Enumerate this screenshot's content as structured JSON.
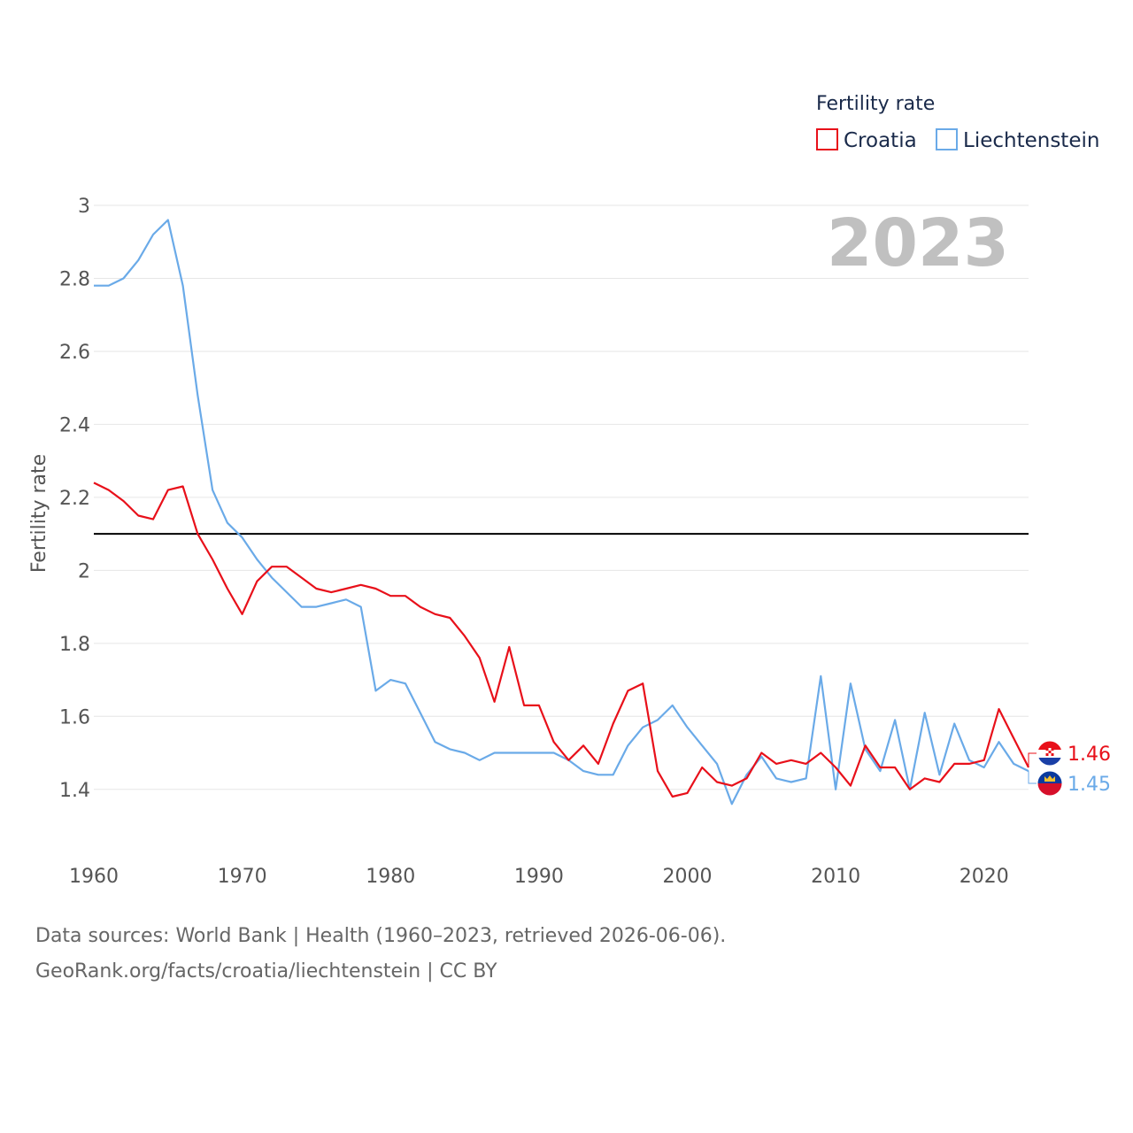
{
  "chart_data": {
    "type": "line",
    "legend_title": "Fertility rate",
    "ylabel": "Fertility rate",
    "xlabel": "",
    "year_watermark": "2023",
    "ylim": [
      1.3,
      3.0
    ],
    "xlim": [
      1960,
      2023
    ],
    "y_ticks": [
      "1.4",
      "1.6",
      "1.8",
      "2",
      "2.2",
      "2.4",
      "2.6",
      "2.8",
      "3"
    ],
    "x_ticks": [
      "1960",
      "1970",
      "1980",
      "1990",
      "2000",
      "2010",
      "2020"
    ],
    "reference_line": 2.1,
    "x": [
      1960,
      1961,
      1962,
      1963,
      1964,
      1965,
      1966,
      1967,
      1968,
      1969,
      1970,
      1971,
      1972,
      1973,
      1974,
      1975,
      1976,
      1977,
      1978,
      1979,
      1980,
      1981,
      1982,
      1983,
      1984,
      1985,
      1986,
      1987,
      1988,
      1989,
      1990,
      1991,
      1992,
      1993,
      1994,
      1995,
      1996,
      1997,
      1998,
      1999,
      2000,
      2001,
      2002,
      2003,
      2004,
      2005,
      2006,
      2007,
      2008,
      2009,
      2010,
      2011,
      2012,
      2013,
      2014,
      2015,
      2016,
      2017,
      2018,
      2019,
      2020,
      2021,
      2022,
      2023
    ],
    "series": [
      {
        "name": "Croatia",
        "color": "#e8101a",
        "end_label": "1.46",
        "flag": "croatia-flag",
        "values": [
          2.24,
          2.22,
          2.19,
          2.15,
          2.14,
          2.22,
          2.23,
          2.1,
          2.03,
          1.95,
          1.88,
          1.97,
          2.01,
          2.01,
          1.98,
          1.95,
          1.94,
          1.95,
          1.96,
          1.95,
          1.93,
          1.93,
          1.9,
          1.88,
          1.87,
          1.82,
          1.76,
          1.64,
          1.79,
          1.63,
          1.63,
          1.53,
          1.48,
          1.52,
          1.47,
          1.58,
          1.67,
          1.69,
          1.45,
          1.38,
          1.39,
          1.46,
          1.42,
          1.41,
          1.43,
          1.5,
          1.47,
          1.48,
          1.47,
          1.5,
          1.46,
          1.41,
          1.52,
          1.46,
          1.46,
          1.4,
          1.43,
          1.42,
          1.47,
          1.47,
          1.48,
          1.62,
          1.54,
          1.46
        ]
      },
      {
        "name": "Liechtenstein",
        "color": "#6aaae8",
        "end_label": "1.45",
        "flag": "liechtenstein-flag",
        "values": [
          2.78,
          2.78,
          2.8,
          2.85,
          2.92,
          2.96,
          2.78,
          2.48,
          2.22,
          2.13,
          2.09,
          2.03,
          1.98,
          1.94,
          1.9,
          1.9,
          1.91,
          1.92,
          1.9,
          1.67,
          1.7,
          1.69,
          1.61,
          1.53,
          1.51,
          1.5,
          1.48,
          1.5,
          1.5,
          1.5,
          1.5,
          1.5,
          1.48,
          1.45,
          1.44,
          1.44,
          1.52,
          1.57,
          1.59,
          1.63,
          1.57,
          1.52,
          1.47,
          1.36,
          1.44,
          1.49,
          1.43,
          1.42,
          1.43,
          1.71,
          1.4,
          1.69,
          1.51,
          1.45,
          1.59,
          1.4,
          1.61,
          1.44,
          1.58,
          1.48,
          1.46,
          1.53,
          1.47,
          1.45
        ]
      }
    ]
  },
  "footer": {
    "sources": "Data sources: World Bank | Health (1960–2023, retrieved 2026-06-06).",
    "credit": "GeoRank.org/facts/croatia/liechtenstein | CC BY"
  }
}
